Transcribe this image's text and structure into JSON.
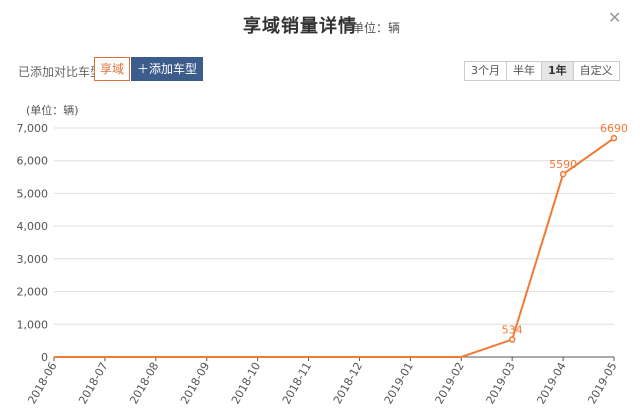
{
  "header": {
    "title": "享域销量详情",
    "unit": "单位：辆",
    "close_glyph": "✕"
  },
  "compare": {
    "label": "已添加对比车型:",
    "models": [
      "享域"
    ],
    "add_label": "＋添加车型"
  },
  "range": {
    "options": [
      "3个月",
      "半年",
      "1年",
      "自定义"
    ],
    "selected": "1年"
  },
  "chart_data": {
    "type": "line",
    "ylabel": "(单位：辆)",
    "x": [
      "2018-06",
      "2018-07",
      "2018-08",
      "2018-09",
      "2018-10",
      "2018-11",
      "2018-12",
      "2019-01",
      "2019-02",
      "2019-03",
      "2019-04",
      "2019-05"
    ],
    "series": [
      {
        "name": "享域",
        "values": [
          0,
          0,
          0,
          0,
          0,
          0,
          0,
          0,
          0,
          534,
          5590,
          6690
        ],
        "color": "#f07a36"
      }
    ],
    "data_labels": [
      null,
      null,
      null,
      null,
      null,
      null,
      null,
      null,
      null,
      "534",
      "5590",
      "6690"
    ],
    "yticks": [
      0,
      1000,
      2000,
      3000,
      4000,
      5000,
      6000,
      7000
    ],
    "ytick_labels": [
      "0",
      "1,000",
      "2,000",
      "3,000",
      "4,000",
      "5,000",
      "6,000",
      "7,000"
    ],
    "ylim": [
      0,
      7000
    ],
    "grid": true,
    "colors": {
      "line": "#f07a36",
      "grid": "#dddddd",
      "axis": "#555555",
      "label": "#555555"
    }
  }
}
